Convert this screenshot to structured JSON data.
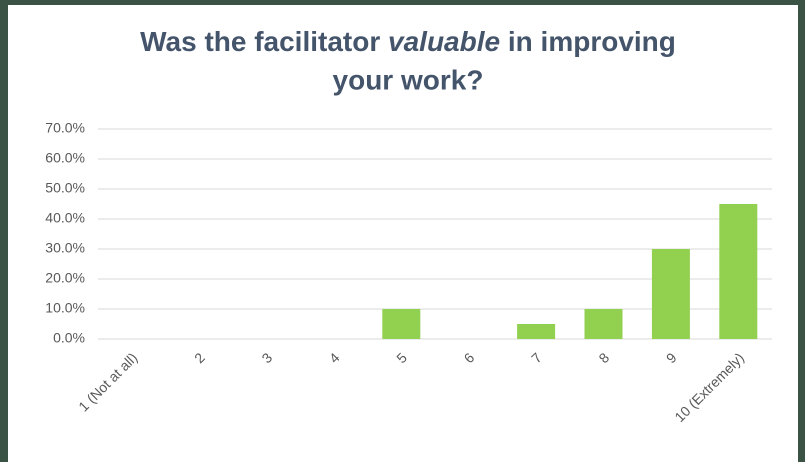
{
  "chart_data": {
    "type": "bar",
    "title": [
      "Was the facilitator",
      "valuable",
      "in improving",
      "your work?"
    ],
    "categories": [
      "1 (Not at all)",
      "2",
      "3",
      "4",
      "5",
      "6",
      "7",
      "8",
      "9",
      "10 (Extremely)"
    ],
    "values": [
      0,
      0,
      0,
      0,
      10,
      0,
      5,
      10,
      30,
      45
    ],
    "color": "#92d050",
    "ylim": [
      0,
      70
    ],
    "yticks": [
      {
        "value": 0,
        "label": "0.0%"
      },
      {
        "value": 10,
        "label": "10.0%"
      },
      {
        "value": 20,
        "label": "20.0%"
      },
      {
        "value": 30,
        "label": "30.0%"
      },
      {
        "value": 40,
        "label": "40.0%"
      },
      {
        "value": 50,
        "label": "50.0%"
      },
      {
        "value": 60,
        "label": "60.0%"
      },
      {
        "value": 70,
        "label": "70.0%"
      }
    ],
    "grid": true
  }
}
